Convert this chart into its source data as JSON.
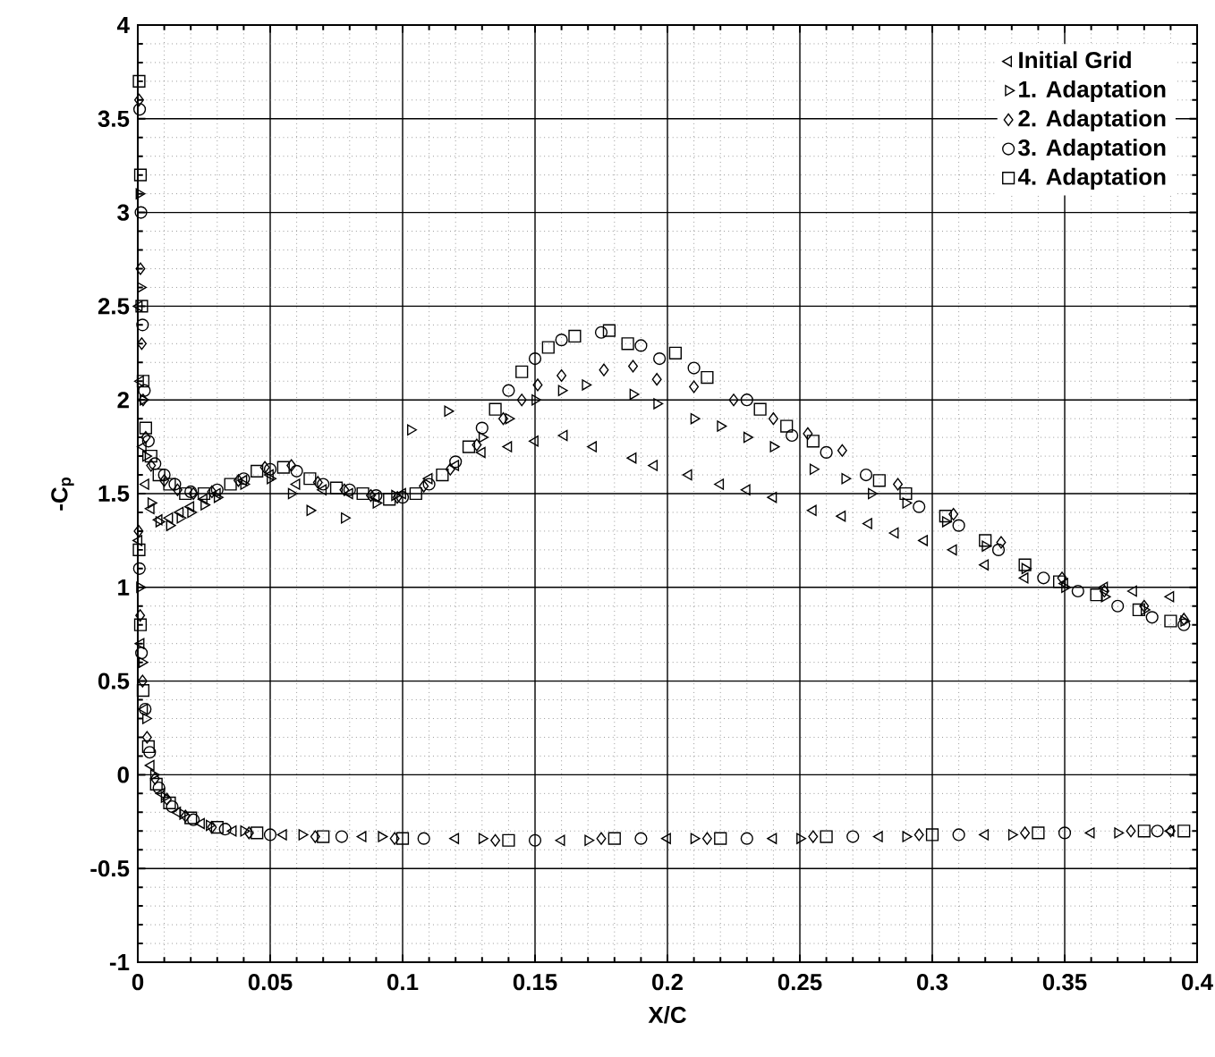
{
  "chart_data": {
    "type": "scatter",
    "xlabel": "X/C",
    "ylabel": "-C$_{p}$",
    "xlim": [
      0,
      0.4
    ],
    "ylim": [
      -1,
      4
    ],
    "xticks": [
      0,
      0.05,
      0.1,
      0.15,
      0.2,
      0.25,
      0.3,
      0.35,
      0.4
    ],
    "yticks": [
      -1,
      -0.5,
      0,
      0.5,
      1,
      1.5,
      2,
      2.5,
      3,
      3.5,
      4
    ],
    "grid": true,
    "legend": "top right",
    "series": [
      {
        "name": "Initial Grid",
        "color": "#000000",
        "marker": "triangle-left",
        "x": [
          0.0005,
          0.001,
          0.002,
          0.003,
          0.005,
          0.008,
          0.012,
          0.016,
          0.02,
          0.025,
          0.03,
          0.04,
          0.05,
          0.06,
          0.07,
          0.08,
          0.09,
          0.1,
          0.11,
          0.12,
          0.13,
          0.14,
          0.15,
          0.161,
          0.172,
          0.187,
          0.195,
          0.208,
          0.22,
          0.23,
          0.24,
          0.255,
          0.266,
          0.276,
          0.286,
          0.297,
          0.308,
          0.32,
          0.335,
          0.35,
          0.365,
          0.376,
          0.39,
          0.0004,
          0.0012,
          0.0025,
          0.005,
          0.009,
          0.015,
          0.024,
          0.036,
          0.055,
          0.085,
          0.12,
          0.16,
          0.2,
          0.24,
          0.28,
          0.32,
          0.36,
          0.39
        ],
        "values": [
          2.5,
          2.1,
          1.75,
          1.55,
          1.42,
          1.36,
          1.37,
          1.4,
          1.43,
          1.47,
          1.5,
          1.57,
          1.6,
          1.55,
          1.52,
          1.5,
          1.48,
          1.5,
          1.58,
          1.65,
          1.72,
          1.75,
          1.78,
          1.81,
          1.75,
          1.69,
          1.65,
          1.6,
          1.55,
          1.52,
          1.48,
          1.41,
          1.38,
          1.34,
          1.29,
          1.25,
          1.2,
          1.12,
          1.05,
          1.02,
          1.0,
          0.98,
          0.95,
          1.25,
          0.7,
          0.35,
          0.05,
          -0.1,
          -0.2,
          -0.26,
          -0.3,
          -0.32,
          -0.33,
          -0.34,
          -0.35,
          -0.34,
          -0.34,
          -0.33,
          -0.32,
          -0.31,
          -0.3
        ]
      },
      {
        "name": "1. Adaptation",
        "color": "#000000",
        "marker": "triangle-right",
        "x": [
          0.0005,
          0.001,
          0.002,
          0.003,
          0.005,
          0.008,
          0.012,
          0.016,
          0.02,
          0.025,
          0.03,
          0.04,
          0.05,
          0.058,
          0.065,
          0.078,
          0.09,
          0.097,
          0.103,
          0.117,
          0.13,
          0.14,
          0.15,
          0.16,
          0.169,
          0.187,
          0.196,
          0.21,
          0.22,
          0.23,
          0.24,
          0.255,
          0.267,
          0.277,
          0.29,
          0.305,
          0.32,
          0.335,
          0.35,
          0.365,
          0.38,
          0.395,
          0.0007,
          0.0016,
          0.003,
          0.006,
          0.01,
          0.017,
          0.027,
          0.04,
          0.062,
          0.092,
          0.13,
          0.17,
          0.21,
          0.25,
          0.29,
          0.33,
          0.37
        ],
        "values": [
          3.1,
          2.6,
          2.0,
          1.7,
          1.45,
          1.35,
          1.33,
          1.37,
          1.4,
          1.44,
          1.48,
          1.55,
          1.58,
          1.5,
          1.41,
          1.37,
          1.45,
          1.49,
          1.84,
          1.94,
          1.8,
          1.9,
          2.0,
          2.05,
          2.08,
          2.03,
          1.98,
          1.9,
          1.86,
          1.8,
          1.75,
          1.63,
          1.58,
          1.5,
          1.45,
          1.35,
          1.22,
          1.1,
          1.0,
          0.95,
          0.88,
          0.82,
          1.0,
          0.6,
          0.3,
          0.0,
          -0.12,
          -0.21,
          -0.27,
          -0.3,
          -0.32,
          -0.33,
          -0.34,
          -0.35,
          -0.34,
          -0.34,
          -0.33,
          -0.32,
          -0.31
        ]
      },
      {
        "name": "2. Adaptation",
        "color": "#000000",
        "marker": "diamond",
        "x": [
          0.0005,
          0.001,
          0.0015,
          0.002,
          0.003,
          0.005,
          0.01,
          0.015,
          0.021,
          0.028,
          0.038,
          0.048,
          0.058,
          0.068,
          0.078,
          0.088,
          0.098,
          0.108,
          0.118,
          0.128,
          0.138,
          0.145,
          0.151,
          0.16,
          0.176,
          0.187,
          0.196,
          0.21,
          0.225,
          0.24,
          0.253,
          0.266,
          0.287,
          0.308,
          0.326,
          0.349,
          0.365,
          0.38,
          0.395,
          0.0003,
          0.0009,
          0.0018,
          0.0035,
          0.0065,
          0.011,
          0.018,
          0.028,
          0.042,
          0.067,
          0.097,
          0.135,
          0.175,
          0.215,
          0.255,
          0.295,
          0.335,
          0.375,
          0.39
        ],
        "values": [
          3.6,
          2.7,
          2.3,
          2.0,
          1.8,
          1.65,
          1.57,
          1.52,
          1.5,
          1.51,
          1.57,
          1.64,
          1.65,
          1.56,
          1.52,
          1.49,
          1.48,
          1.54,
          1.63,
          1.76,
          1.9,
          2.0,
          2.08,
          2.13,
          2.16,
          2.18,
          2.11,
          2.07,
          2.0,
          1.9,
          1.82,
          1.73,
          1.55,
          1.39,
          1.24,
          1.05,
          0.98,
          0.9,
          0.83,
          1.3,
          0.85,
          0.5,
          0.2,
          -0.02,
          -0.13,
          -0.22,
          -0.28,
          -0.31,
          -0.33,
          -0.34,
          -0.35,
          -0.34,
          -0.34,
          -0.33,
          -0.32,
          -0.31,
          -0.3,
          -0.3
        ]
      },
      {
        "name": "3. Adaptation",
        "color": "#000000",
        "marker": "circle",
        "x": [
          0.0007,
          0.0012,
          0.0018,
          0.0025,
          0.004,
          0.0065,
          0.01,
          0.014,
          0.02,
          0.03,
          0.04,
          0.05,
          0.06,
          0.07,
          0.08,
          0.09,
          0.1,
          0.11,
          0.12,
          0.13,
          0.14,
          0.15,
          0.16,
          0.175,
          0.19,
          0.197,
          0.21,
          0.23,
          0.247,
          0.26,
          0.275,
          0.295,
          0.31,
          0.325,
          0.342,
          0.355,
          0.37,
          0.383,
          0.395,
          0.0006,
          0.0014,
          0.0028,
          0.0045,
          0.008,
          0.013,
          0.021,
          0.033,
          0.05,
          0.077,
          0.108,
          0.15,
          0.19,
          0.23,
          0.27,
          0.31,
          0.35,
          0.385
        ],
        "values": [
          3.55,
          3.0,
          2.4,
          2.05,
          1.78,
          1.66,
          1.6,
          1.55,
          1.51,
          1.52,
          1.58,
          1.63,
          1.62,
          1.55,
          1.52,
          1.49,
          1.48,
          1.55,
          1.67,
          1.85,
          2.05,
          2.22,
          2.32,
          2.36,
          2.29,
          2.22,
          2.17,
          2.0,
          1.81,
          1.72,
          1.6,
          1.43,
          1.33,
          1.2,
          1.05,
          0.98,
          0.9,
          0.84,
          0.8,
          1.1,
          0.65,
          0.35,
          0.12,
          -0.07,
          -0.17,
          -0.24,
          -0.29,
          -0.32,
          -0.33,
          -0.34,
          -0.35,
          -0.34,
          -0.34,
          -0.33,
          -0.32,
          -0.31,
          -0.3
        ]
      },
      {
        "name": "4. Adaptation",
        "color": "#000000",
        "marker": "square",
        "x": [
          0.0005,
          0.001,
          0.0015,
          0.002,
          0.003,
          0.005,
          0.008,
          0.012,
          0.018,
          0.025,
          0.035,
          0.045,
          0.055,
          0.065,
          0.075,
          0.085,
          0.095,
          0.105,
          0.115,
          0.125,
          0.135,
          0.145,
          0.155,
          0.165,
          0.178,
          0.185,
          0.203,
          0.215,
          0.235,
          0.245,
          0.255,
          0.28,
          0.29,
          0.305,
          0.32,
          0.335,
          0.348,
          0.362,
          0.378,
          0.39,
          0.0005,
          0.001,
          0.002,
          0.004,
          0.007,
          0.012,
          0.02,
          0.03,
          0.045,
          0.07,
          0.1,
          0.14,
          0.18,
          0.22,
          0.26,
          0.3,
          0.34,
          0.38,
          0.395
        ],
        "values": [
          3.7,
          3.2,
          2.5,
          2.1,
          1.85,
          1.7,
          1.6,
          1.55,
          1.5,
          1.5,
          1.55,
          1.62,
          1.64,
          1.58,
          1.53,
          1.5,
          1.47,
          1.5,
          1.6,
          1.75,
          1.95,
          2.15,
          2.28,
          2.34,
          2.37,
          2.3,
          2.25,
          2.12,
          1.95,
          1.86,
          1.78,
          1.57,
          1.5,
          1.38,
          1.25,
          1.12,
          1.03,
          0.96,
          0.88,
          0.82,
          1.2,
          0.8,
          0.45,
          0.15,
          -0.05,
          -0.15,
          -0.23,
          -0.28,
          -0.31,
          -0.33,
          -0.34,
          -0.35,
          -0.34,
          -0.34,
          -0.33,
          -0.32,
          -0.31,
          -0.3,
          -0.3
        ]
      }
    ]
  }
}
